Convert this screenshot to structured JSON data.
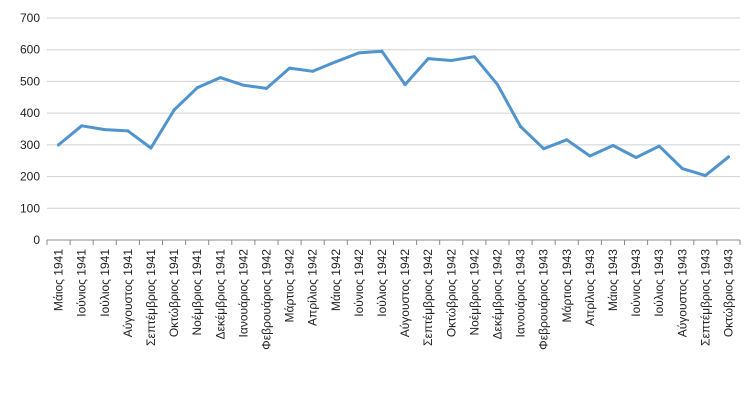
{
  "chart_data": {
    "type": "line",
    "title": "",
    "xlabel": "",
    "ylabel": "",
    "ylim": [
      0,
      700
    ],
    "yticks": [
      0,
      100,
      200,
      300,
      400,
      500,
      600,
      700
    ],
    "grid": true,
    "legend": "none",
    "categories": [
      "Μάιος 1941",
      "Ιούνιος 1941",
      "Ιούλιος 1941",
      "Αύγουστος 1941",
      "Σεπτέμβριος 1941",
      "Οκτώβριος 1941",
      "Νοέμβριος 1941",
      "Δεκέμβριος 1941",
      "Ιανουάριος 1942",
      "Φεβρουάριος 1942",
      "Μάρτιος 1942",
      "Απρίλιος 1942",
      "Μάιος 1942",
      "Ιούνιος 1942",
      "Ιούλιος 1942",
      "Αύγουστος 1942",
      "Σεπτέμβριος 1942",
      "Οκτώβριος 1942",
      "Νοέμβριος 1942",
      "Δεκέμβριος 1942",
      "Ιανουάριος 1943",
      "Φεβρουάριος 1943",
      "Μάρτιος 1943",
      "Απρίλιος 1943",
      "Μάιος 1943",
      "Ιούνιος 1943",
      "Ιούλιος 1943",
      "Αύγουστος 1943",
      "Σεπτέμβριος 1943",
      "Οκτώβριος 1943"
    ],
    "series": [
      {
        "values": [
          300,
          360,
          348,
          344,
          290,
          410,
          480,
          512,
          488,
          478,
          542,
          532,
          562,
          590,
          595,
          490,
          572,
          566,
          578,
          490,
          358,
          288,
          316,
          265,
          298,
          260,
          296,
          225,
          203,
          262
        ],
        "color": "#4f94cd"
      }
    ]
  }
}
